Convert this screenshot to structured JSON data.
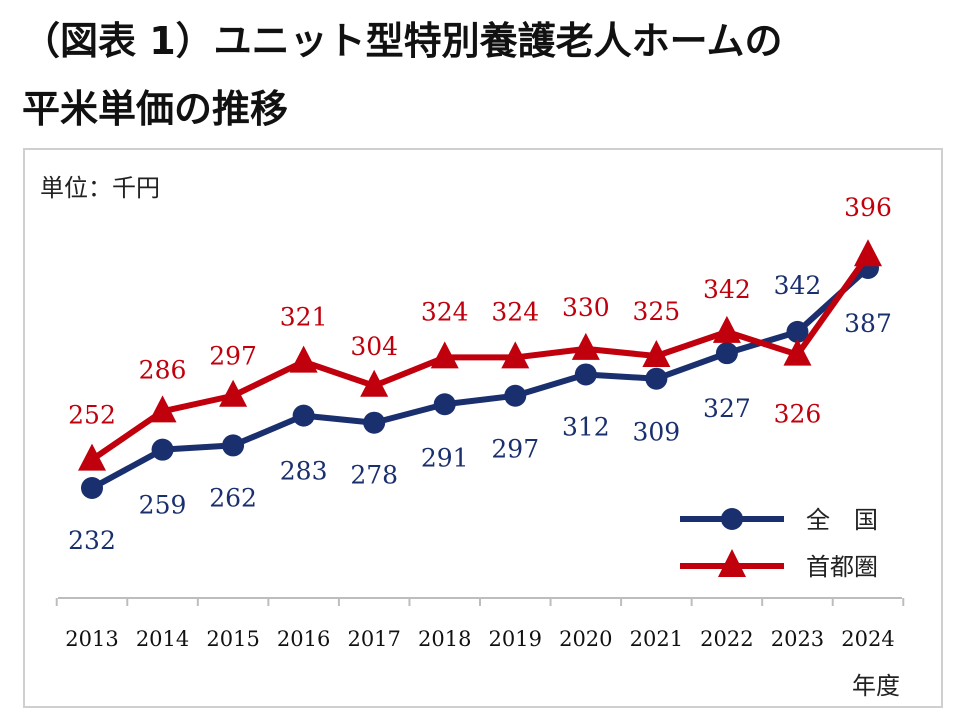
{
  "title": {
    "line1": "（図表 1）ユニット型特別養護老人ホームの",
    "line2": "平米単価の推移"
  },
  "chart_data": {
    "type": "line",
    "unit_label": "単位：千円",
    "xlabel": "年度",
    "ylabel": "",
    "x": [
      "2013",
      "2014",
      "2015",
      "2016",
      "2017",
      "2018",
      "2019",
      "2020",
      "2021",
      "2022",
      "2023",
      "2024"
    ],
    "series": [
      {
        "name": "全　国",
        "color": "#1a2f6e",
        "marker": "circle",
        "values": [
          232,
          259,
          262,
          283,
          278,
          291,
          297,
          312,
          309,
          327,
          342,
          387
        ]
      },
      {
        "name": "首都圏",
        "color": "#c0000c",
        "marker": "triangle",
        "values": [
          252,
          286,
          297,
          321,
          304,
          324,
          324,
          330,
          325,
          342,
          326,
          396
        ]
      }
    ],
    "legend_position": "bottom-right",
    "grid": false
  }
}
